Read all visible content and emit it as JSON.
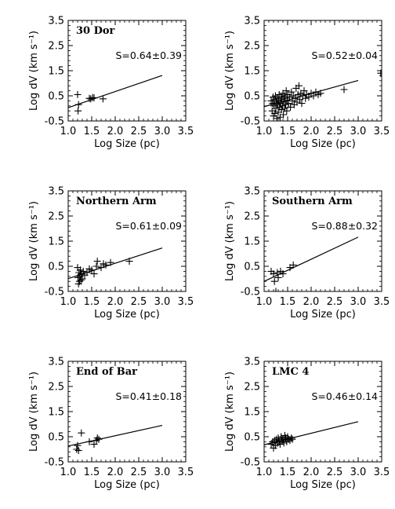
{
  "figure": {
    "xlabel": "Log Size (pc)",
    "ylabel": "Log dV (km s⁻¹)",
    "xticks": [
      "1.0",
      "1.5",
      "2.0",
      "2.5",
      "3.0",
      "3.5"
    ],
    "yticks": [
      "-0.5",
      "0.5",
      "1.5",
      "2.5",
      "3.5"
    ],
    "xlim": [
      1.0,
      3.5
    ],
    "ylim": [
      -0.5,
      3.5
    ],
    "colors": {
      "ink": "#000000",
      "background": "#ffffff"
    }
  },
  "chart_data": [
    {
      "type": "scatter",
      "title": "30 Dor",
      "slope_label": "S=0.64±0.39",
      "fit": {
        "slope": 0.64,
        "intercept": -0.61,
        "x_range": [
          1.0,
          3.0
        ]
      },
      "points": [
        [
          1.2,
          0.55
        ],
        [
          1.22,
          0.15
        ],
        [
          1.21,
          -0.1
        ],
        [
          1.45,
          0.4
        ],
        [
          1.48,
          0.38
        ],
        [
          1.52,
          0.43
        ],
        [
          1.55,
          0.42
        ],
        [
          1.74,
          0.38
        ]
      ]
    },
    {
      "type": "scatter",
      "title": "",
      "slope_label": "S=0.52±0.04",
      "fit": {
        "slope": 0.52,
        "intercept": -0.45,
        "x_range": [
          1.0,
          3.0
        ]
      },
      "points": [
        [
          1.15,
          0.3
        ],
        [
          1.17,
          -0.1
        ],
        [
          1.18,
          0.2
        ],
        [
          1.19,
          0.45
        ],
        [
          1.2,
          -0.3
        ],
        [
          1.21,
          0.1
        ],
        [
          1.22,
          0.35
        ],
        [
          1.23,
          -0.2
        ],
        [
          1.24,
          0.5
        ],
        [
          1.25,
          0.0
        ],
        [
          1.26,
          0.25
        ],
        [
          1.27,
          -0.4
        ],
        [
          1.28,
          0.4
        ],
        [
          1.29,
          0.15
        ],
        [
          1.3,
          -0.15
        ],
        [
          1.31,
          0.3
        ],
        [
          1.32,
          0.55
        ],
        [
          1.33,
          0.05
        ],
        [
          1.34,
          -0.35
        ],
        [
          1.35,
          0.2
        ],
        [
          1.36,
          0.45
        ],
        [
          1.37,
          -0.05
        ],
        [
          1.38,
          0.35
        ],
        [
          1.39,
          0.1
        ],
        [
          1.4,
          0.6
        ],
        [
          1.41,
          -0.25
        ],
        [
          1.42,
          0.25
        ],
        [
          1.43,
          0.5
        ],
        [
          1.44,
          0.0
        ],
        [
          1.45,
          0.4
        ],
        [
          1.46,
          0.15
        ],
        [
          1.47,
          0.7
        ],
        [
          1.48,
          -0.1
        ],
        [
          1.49,
          0.3
        ],
        [
          1.5,
          0.55
        ],
        [
          1.52,
          0.2
        ],
        [
          1.54,
          0.45
        ],
        [
          1.56,
          0.05
        ],
        [
          1.58,
          0.65
        ],
        [
          1.6,
          0.3
        ],
        [
          1.62,
          0.5
        ],
        [
          1.64,
          0.15
        ],
        [
          1.66,
          0.4
        ],
        [
          1.68,
          0.8
        ],
        [
          1.7,
          0.25
        ],
        [
          1.72,
          0.55
        ],
        [
          1.74,
          0.9
        ],
        [
          1.76,
          0.35
        ],
        [
          1.78,
          0.6
        ],
        [
          1.8,
          0.2
        ],
        [
          1.82,
          0.5
        ],
        [
          1.85,
          0.7
        ],
        [
          1.88,
          0.4
        ],
        [
          1.9,
          0.55
        ],
        [
          1.95,
          0.45
        ],
        [
          2.0,
          0.6
        ],
        [
          2.05,
          0.5
        ],
        [
          2.1,
          0.65
        ],
        [
          2.15,
          0.55
        ],
        [
          2.2,
          0.6
        ],
        [
          2.7,
          0.75
        ],
        [
          3.48,
          1.4
        ]
      ]
    },
    {
      "type": "scatter",
      "title": "Northern Arm",
      "slope_label": "S=0.61±0.09",
      "fit": {
        "slope": 0.61,
        "intercept": -0.6,
        "x_range": [
          1.0,
          3.0
        ]
      },
      "points": [
        [
          1.2,
          0.45
        ],
        [
          1.21,
          0.05
        ],
        [
          1.22,
          -0.2
        ],
        [
          1.23,
          0.25
        ],
        [
          1.24,
          -0.1
        ],
        [
          1.25,
          0.1
        ],
        [
          1.26,
          0.35
        ],
        [
          1.27,
          -0.05
        ],
        [
          1.28,
          0.2
        ],
        [
          1.3,
          0.0
        ],
        [
          1.32,
          0.3
        ],
        [
          1.35,
          0.15
        ],
        [
          1.4,
          0.25
        ],
        [
          1.45,
          0.4
        ],
        [
          1.5,
          0.35
        ],
        [
          1.55,
          0.2
        ],
        [
          1.6,
          0.5
        ],
        [
          1.62,
          0.7
        ],
        [
          1.7,
          0.45
        ],
        [
          1.75,
          0.6
        ],
        [
          1.8,
          0.55
        ],
        [
          1.9,
          0.65
        ],
        [
          2.3,
          0.7
        ]
      ]
    },
    {
      "type": "scatter",
      "title": "Southern Arm",
      "slope_label": "S=0.88±0.32",
      "fit": {
        "slope": 0.88,
        "intercept": -0.98,
        "x_range": [
          1.0,
          3.0
        ]
      },
      "points": [
        [
          1.15,
          0.3
        ],
        [
          1.2,
          0.2
        ],
        [
          1.22,
          -0.1
        ],
        [
          1.25,
          -0.5
        ],
        [
          1.28,
          0.25
        ],
        [
          1.3,
          0.05
        ],
        [
          1.35,
          0.3
        ],
        [
          1.4,
          0.2
        ],
        [
          1.55,
          0.45
        ],
        [
          1.62,
          0.55
        ]
      ]
    },
    {
      "type": "scatter",
      "title": "End of Bar",
      "slope_label": "S=0.41±0.18",
      "fit": {
        "slope": 0.41,
        "intercept": -0.28,
        "x_range": [
          1.0,
          3.0
        ]
      },
      "points": [
        [
          1.18,
          0.0
        ],
        [
          1.2,
          0.15
        ],
        [
          1.22,
          -0.05
        ],
        [
          1.28,
          0.65
        ],
        [
          1.45,
          0.3
        ],
        [
          1.55,
          0.2
        ],
        [
          1.6,
          0.35
        ],
        [
          1.62,
          0.45
        ],
        [
          1.65,
          0.4
        ]
      ]
    },
    {
      "type": "scatter",
      "title": "LMC 4",
      "slope_label": "S=0.46±0.14",
      "fit": {
        "slope": 0.46,
        "intercept": -0.28,
        "x_range": [
          1.0,
          3.0
        ]
      },
      "points": [
        [
          1.15,
          0.2
        ],
        [
          1.18,
          0.3
        ],
        [
          1.2,
          0.05
        ],
        [
          1.22,
          0.35
        ],
        [
          1.24,
          0.15
        ],
        [
          1.26,
          0.4
        ],
        [
          1.28,
          0.25
        ],
        [
          1.3,
          0.45
        ],
        [
          1.32,
          0.3
        ],
        [
          1.34,
          0.2
        ],
        [
          1.36,
          0.5
        ],
        [
          1.38,
          0.35
        ],
        [
          1.4,
          0.4
        ],
        [
          1.42,
          0.25
        ],
        [
          1.44,
          0.55
        ],
        [
          1.46,
          0.45
        ],
        [
          1.48,
          0.3
        ],
        [
          1.5,
          0.5
        ],
        [
          1.52,
          0.4
        ],
        [
          1.55,
          0.35
        ],
        [
          1.58,
          0.45
        ],
        [
          1.6,
          0.4
        ]
      ]
    }
  ]
}
